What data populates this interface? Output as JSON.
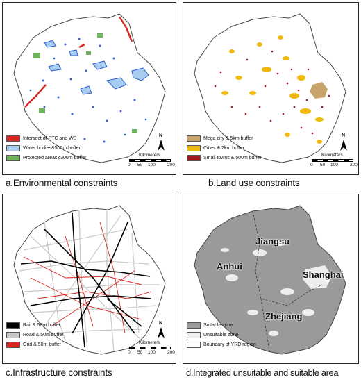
{
  "panels": {
    "a": {
      "caption": "a.Environmental constraints",
      "legend": [
        {
          "label": "Intersect of PTC and WB",
          "color": "#d7261f"
        },
        {
          "label": "Water bodies&500m buffer",
          "color": "#a9cdf1"
        },
        {
          "label": "Protected areas&300m buffer",
          "color": "#6fb45c"
        }
      ]
    },
    "b": {
      "caption": "b.Land use constraints",
      "legend": [
        {
          "label": "Mega city & 5km buffer",
          "color": "#c8a46a"
        },
        {
          "label": "Cities & 2km buffer",
          "color": "#efb90f"
        },
        {
          "label": "Small towns & 500m buffer",
          "color": "#9b1b1b"
        }
      ]
    },
    "c": {
      "caption": "c.Infrastructure constraints",
      "legend": [
        {
          "label": "Rail & 50m buffer",
          "color": "#000000"
        },
        {
          "label": "Road & 50m buffer",
          "color": "#c9c9c9"
        },
        {
          "label": "Grid & 50m buffer",
          "color": "#d7261f"
        }
      ]
    },
    "d": {
      "caption": "d.Integrated unsuitable and suitable area",
      "legend": [
        {
          "label": "Suitable zone",
          "color": "#9a9a9a"
        },
        {
          "label": "Unsuitable zone",
          "color": "#eeeeee"
        },
        {
          "label": "Boundary of YRD region",
          "color": "#ffffff"
        }
      ],
      "provinces": [
        "Jiangsu",
        "Anhui",
        "Shanghai",
        "Zhejiang"
      ]
    }
  },
  "north_label": "N",
  "scale": {
    "unit": "Kilometers",
    "ticks": [
      "0",
      "50",
      "100",
      "200"
    ]
  }
}
